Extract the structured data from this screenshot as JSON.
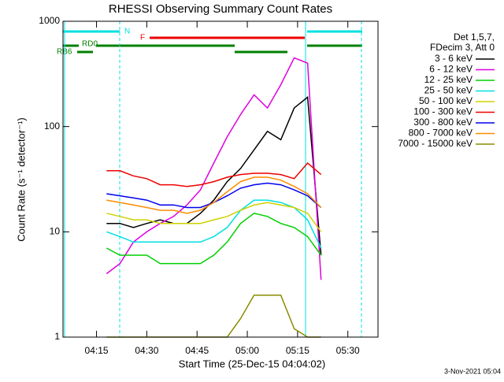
{
  "chart_data": {
    "type": "line",
    "title": "RHESSI Observing Summary Count Rates",
    "x_label": "Start Time (25-Dec-15 04:04:02)",
    "y_label": "Count Rate (s⁻¹ detector⁻¹)",
    "legend_header": [
      "Det 1,5,7,",
      "FDecim 3, Att 0"
    ],
    "flags": [
      "N",
      "F",
      "RD0",
      "RB6"
    ],
    "footer": "3-Nov-2021 05:04",
    "log_y": true,
    "x": [
      "04:18",
      "04:22",
      "04:26",
      "04:30",
      "04:34",
      "04:38",
      "04:42",
      "04:46",
      "04:50",
      "04:54",
      "04:58",
      "05:02",
      "05:06",
      "05:10",
      "05:14",
      "05:18",
      "05:22"
    ],
    "xlim": [
      "04:05",
      "05:39"
    ],
    "xticks": [
      "04:15",
      "04:30",
      "04:45",
      "05:00",
      "05:15",
      "05:30"
    ],
    "ylim": [
      1,
      1000
    ],
    "yticks": [
      1,
      10,
      100,
      1000
    ],
    "series": [
      {
        "name": "3 - 6 keV",
        "color": "#000000",
        "values": [
          12,
          12,
          11,
          12,
          13,
          12,
          12,
          15,
          20,
          30,
          40,
          60,
          90,
          75,
          150,
          190,
          6
        ]
      },
      {
        "name": "6 - 12 keV",
        "color": "#e000e0",
        "values": [
          4,
          5,
          8,
          10,
          12,
          14,
          18,
          25,
          45,
          80,
          130,
          200,
          150,
          250,
          450,
          400,
          3.5
        ]
      },
      {
        "name": "12 - 25 keV",
        "color": "#00d000",
        "values": [
          7,
          6,
          6,
          6,
          5,
          5,
          5,
          5,
          6,
          8,
          12,
          15,
          14,
          12,
          11,
          9,
          6
        ]
      },
      {
        "name": "25 - 50 keV",
        "color": "#00e0e0",
        "values": [
          10,
          9,
          8,
          8,
          8,
          8,
          8,
          8,
          9,
          11,
          16,
          20,
          20,
          19,
          17,
          13,
          7
        ]
      },
      {
        "name": "50 - 100 keV",
        "color": "#d0d000",
        "values": [
          15,
          14,
          13,
          13,
          12,
          12,
          12,
          12,
          13,
          14,
          16,
          18,
          19,
          18,
          17,
          15,
          10
        ]
      },
      {
        "name": "100 - 300 keV",
        "color": "#ee0000",
        "values": [
          38,
          38,
          34,
          32,
          28,
          28,
          27,
          28,
          30,
          33,
          35,
          36,
          36,
          35,
          32,
          45,
          35
        ]
      },
      {
        "name": "300 - 800 keV",
        "color": "#0000ee",
        "values": [
          23,
          22,
          21,
          20,
          18,
          18,
          17,
          17,
          19,
          22,
          26,
          28,
          29,
          28,
          25,
          22,
          17
        ]
      },
      {
        "name": "800 - 7000 keV",
        "color": "#ff8c00",
        "values": [
          20,
          19,
          18,
          17,
          16,
          16,
          15,
          16,
          19,
          24,
          30,
          33,
          33,
          31,
          27,
          23,
          17
        ]
      },
      {
        "name": "7000 - 15000 keV",
        "color": "#8b8b00",
        "values": [
          1,
          1,
          1,
          1,
          1,
          1,
          1,
          1,
          1,
          1,
          1.5,
          2.5,
          2.5,
          2.5,
          1.2,
          1,
          1
        ]
      }
    ]
  }
}
